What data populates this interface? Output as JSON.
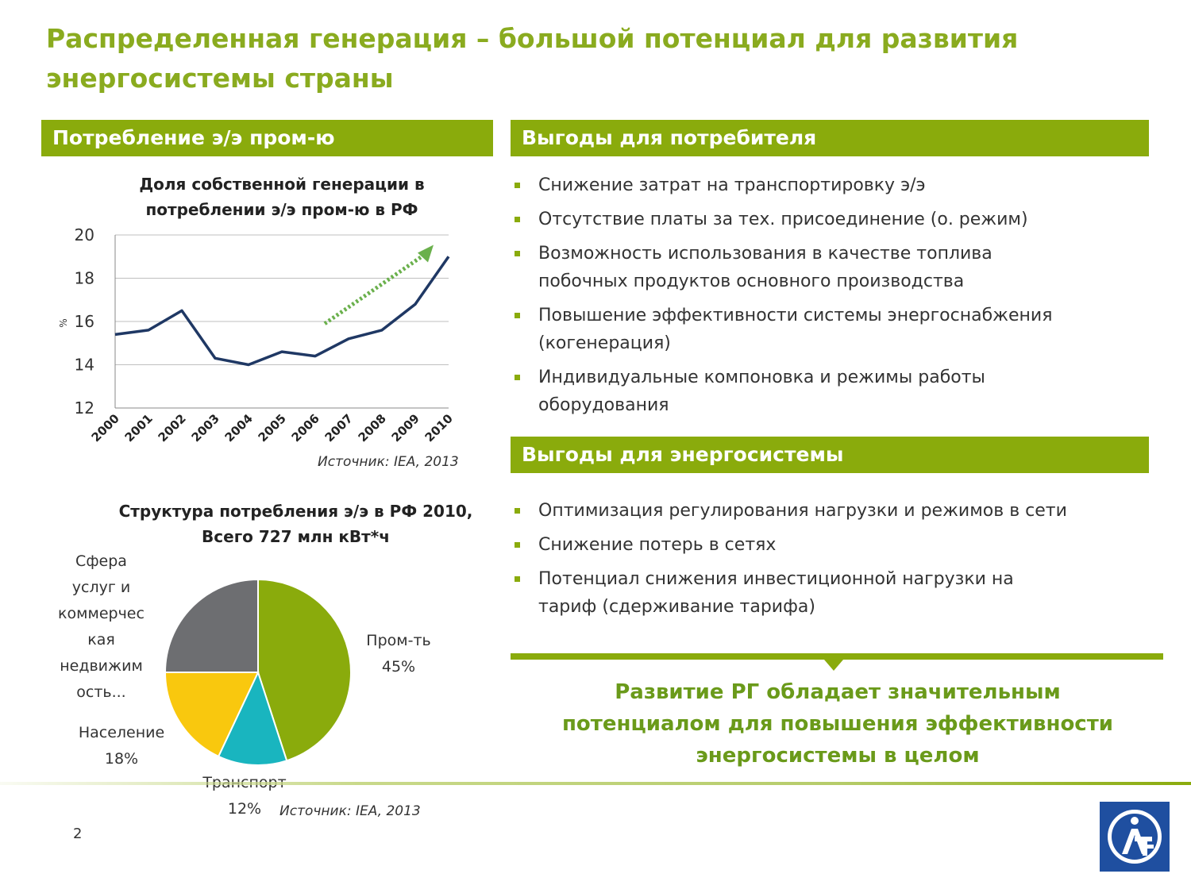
{
  "title_line1": "Распределенная генерация – большой потенциал для развития",
  "title_line2": "энергосистемы страны",
  "left_header": "Потребление э/э пром-ю",
  "right_header1": "Выгоды для потребителя",
  "right_header2": "Выгоды для энергосистемы",
  "line_chart_title_1": "Доля собственной генерации в",
  "line_chart_title_2": "потреблении э/э пром-ю в РФ",
  "source1": "Источник: IEA, 2013",
  "pie_title_1": "Структура потребления э/э в РФ 2010,",
  "pie_title_2": "Всего 727 млн кВт*ч",
  "source2": "Источник: IEA, 2013",
  "consumer_benefits": [
    {
      "l1": "Снижение затрат на транспортировку э/э",
      "l2": ""
    },
    {
      "l1": "Отсутствие платы за тех. присоединение (о. режим)",
      "l2": ""
    },
    {
      "l1": "Возможность использования в качестве топлива",
      "l2": "побочных продуктов основного производства"
    },
    {
      "l1": "Повышение эффективности системы энергоснабжения",
      "l2": "(когенерация)"
    },
    {
      "l1": "Индивидуальные компоновка и режимы работы",
      "l2": "оборудования"
    }
  ],
  "system_benefits": [
    {
      "l1": "Оптимизация регулирования нагрузки и режимов в сети",
      "l2": ""
    },
    {
      "l1": "Снижение потерь в сетях",
      "l2": ""
    },
    {
      "l1": "Потенциал снижения инвестиционной нагрузки на",
      "l2": "тариф (сдерживание тарифа)"
    }
  ],
  "conclusion_1": "Развитие РГ обладает значительным",
  "conclusion_2": "потенциалом для повышения эффективности",
  "conclusion_3": "энергосистемы в целом",
  "page_number": "2",
  "pie_labels": {
    "services": [
      "Сфера",
      "услуг и",
      "коммерчес",
      "кая",
      "недвижим",
      "ость..."
    ],
    "industry": [
      "Пром-ть",
      "45%"
    ],
    "population": [
      "Население",
      "18%"
    ],
    "transport": [
      "Транспорт",
      "12%"
    ]
  },
  "colors": {
    "accent": "#8aab0c",
    "line": "#1f3864",
    "arrow": "#6ab04c",
    "pie_industry": "#8aab0c",
    "pie_transport": "#19b5bf",
    "pie_population": "#f9c80e",
    "pie_services": "#6d6e71"
  },
  "chart_data": [
    {
      "type": "line",
      "title": "Доля собственной генерации в потреблении э/э пром-ю в РФ",
      "ylabel": "%",
      "x": [
        "2000",
        "2001",
        "2002",
        "2003",
        "2004",
        "2005",
        "2006",
        "2007",
        "2008",
        "2009",
        "2010"
      ],
      "series": [
        {
          "values": [
            15.4,
            15.6,
            16.5,
            14.3,
            14.0,
            14.6,
            14.4,
            15.2,
            15.6,
            16.8,
            19.0
          ]
        }
      ],
      "ylim": [
        12,
        20
      ],
      "yticks": [
        12,
        14,
        16,
        18,
        20
      ],
      "grid": true
    },
    {
      "type": "pie",
      "title": "Структура потребления э/э в РФ 2010, Всего 727 млн кВт*ч",
      "categories": [
        "Пром-ть",
        "Транспорт",
        "Население",
        "Сфера услуг и коммерческая недвижимость"
      ],
      "values": [
        45,
        12,
        18,
        25
      ]
    }
  ]
}
